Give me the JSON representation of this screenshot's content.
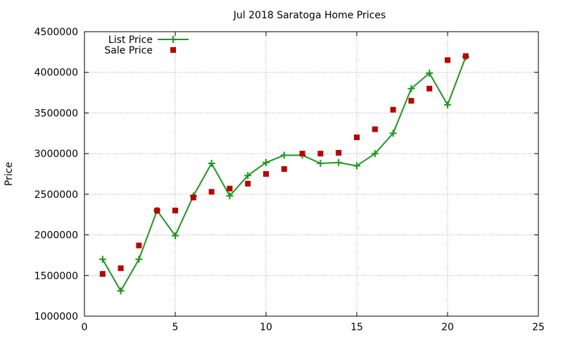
{
  "chart_data": {
    "type": "line",
    "title": "Jul 2018 Saratoga Home Prices",
    "xlabel": "",
    "ylabel": "Price",
    "xlim": [
      0,
      25
    ],
    "ylim": [
      1000000,
      4500000
    ],
    "xticks": [
      0,
      5,
      10,
      15,
      20,
      25
    ],
    "yticks": [
      1000000,
      1500000,
      2000000,
      2500000,
      3000000,
      3500000,
      4000000,
      4500000
    ],
    "grid": true,
    "legend_position": "top-left",
    "series": [
      {
        "name": "List Price",
        "style": "line-with-plus-markers",
        "color": "#1a9a1a",
        "x": [
          1,
          2,
          3,
          4,
          5,
          6,
          7,
          8,
          9,
          10,
          11,
          12,
          13,
          14,
          15,
          16,
          17,
          18,
          19,
          20,
          21
        ],
        "y": [
          1700000,
          1310000,
          1700000,
          2300000,
          1990000,
          2480000,
          2880000,
          2480000,
          2730000,
          2890000,
          2980000,
          2980000,
          2880000,
          2890000,
          2850000,
          3000000,
          3250000,
          3800000,
          3990000,
          3600000,
          4190000
        ]
      },
      {
        "name": "Sale Price",
        "style": "square-markers",
        "color": "#c00000",
        "x": [
          1,
          2,
          3,
          4,
          5,
          6,
          7,
          8,
          9,
          10,
          11,
          12,
          13,
          14,
          15,
          16,
          17,
          18,
          19,
          20,
          21
        ],
        "y": [
          1520000,
          1590000,
          1870000,
          2300000,
          2300000,
          2460000,
          2530000,
          2570000,
          2630000,
          2750000,
          2810000,
          3000000,
          3000000,
          3010000,
          3200000,
          3300000,
          3540000,
          3650000,
          3800000,
          4150000,
          4200000
        ]
      }
    ]
  }
}
